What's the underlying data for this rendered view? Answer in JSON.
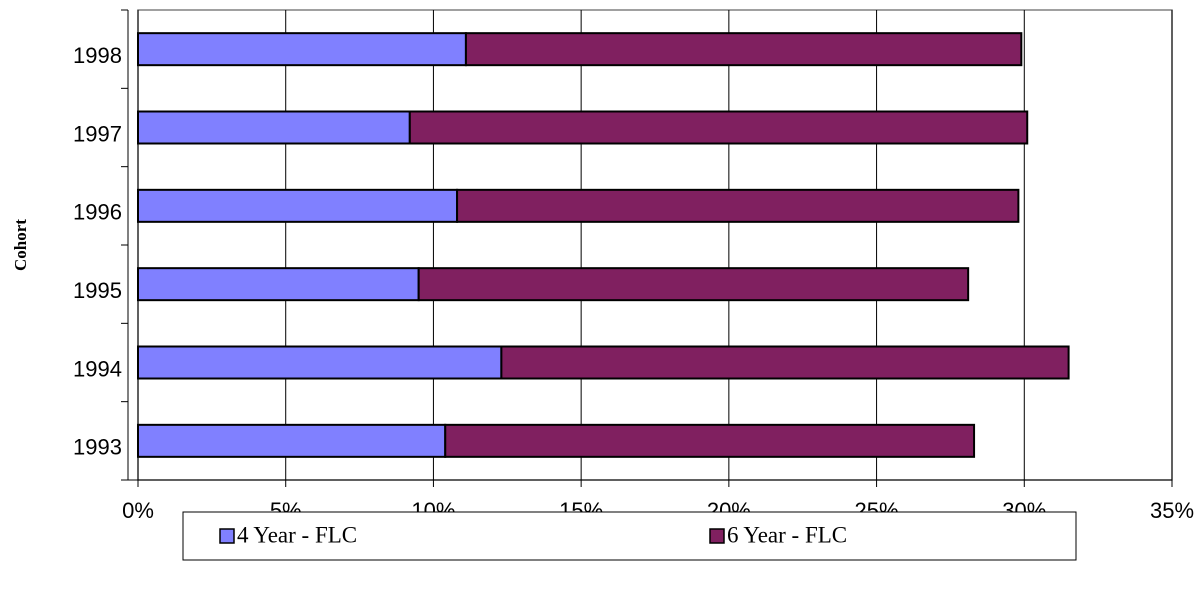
{
  "chart_data": {
    "type": "stacked_barh",
    "y_label": "Cohort",
    "categories": [
      "1993",
      "1994",
      "1995",
      "1996",
      "1997",
      "1998"
    ],
    "series": [
      {
        "name": "4 Year - FLC",
        "color": "#8080ff",
        "values": [
          10.4,
          12.3,
          9.5,
          10.8,
          9.2,
          11.1
        ]
      },
      {
        "name": "6 Year - FLC",
        "color": "#802060",
        "values": [
          17.9,
          19.2,
          18.6,
          19.0,
          20.9,
          18.8
        ]
      }
    ],
    "xlim": [
      0,
      35
    ],
    "xticks": [
      {
        "value": 0,
        "label": "0%"
      },
      {
        "value": 5,
        "label": "5%"
      },
      {
        "value": 10,
        "label": "10%"
      },
      {
        "value": 15,
        "label": "15%"
      },
      {
        "value": 20,
        "label": "20%"
      },
      {
        "value": 25,
        "label": "25%"
      },
      {
        "value": 30,
        "label": "30%"
      },
      {
        "value": 35,
        "label": "35%"
      }
    ],
    "grid": true,
    "legend": "bottom"
  }
}
